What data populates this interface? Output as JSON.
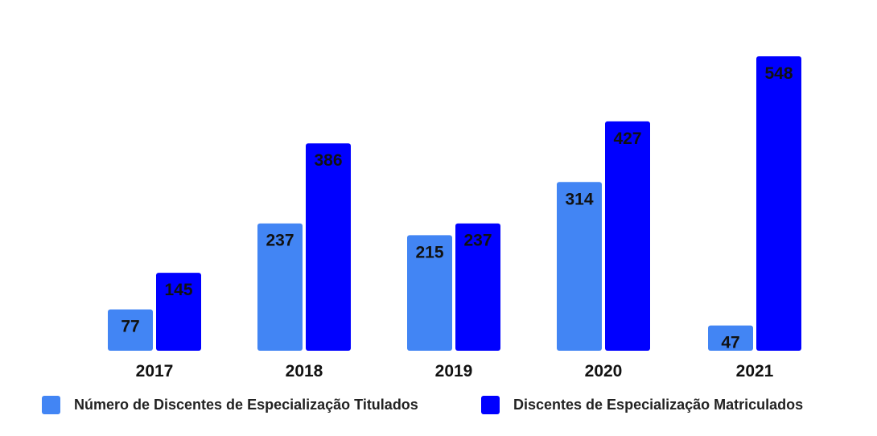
{
  "chart_data": {
    "type": "bar",
    "title": "",
    "xlabel": "",
    "ylabel": "",
    "categories": [
      "2017",
      "2018",
      "2019",
      "2020",
      "2021"
    ],
    "series": [
      {
        "name": "Número de Discentes de Especialização Titulados",
        "color": "#4285f4",
        "values": [
          77,
          237,
          215,
          314,
          47
        ]
      },
      {
        "name": "Discentes de Especialização Matriculados",
        "color": "#0000ff",
        "values": [
          145,
          386,
          237,
          427,
          548
        ]
      }
    ],
    "ylim": [
      0,
      548
    ],
    "grid": false,
    "legend_position": "bottom",
    "data_labels": true
  }
}
